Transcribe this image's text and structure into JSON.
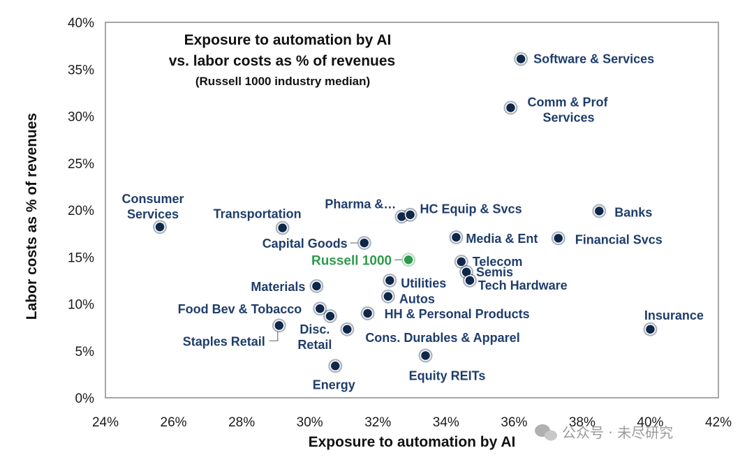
{
  "chart_data": {
    "type": "scatter",
    "title": "Exposure to automation by AI",
    "title_line2": "vs. labor costs as % of revenues",
    "subtitle": "(Russell 1000 industry median)",
    "xlabel": "Exposure to automation by AI",
    "ylabel": "Labor costs as % of revenues",
    "xlim": [
      24,
      42
    ],
    "ylim": [
      0,
      40
    ],
    "x_ticks": [
      24,
      26,
      28,
      30,
      32,
      34,
      36,
      38,
      40,
      42
    ],
    "y_ticks": [
      0,
      5,
      10,
      15,
      20,
      25,
      30,
      35,
      40
    ],
    "x_tick_labels": [
      "24%",
      "26%",
      "28%",
      "30%",
      "32%",
      "34%",
      "36%",
      "38%",
      "40%",
      "42%"
    ],
    "y_tick_labels": [
      "0%",
      "5%",
      "10%",
      "15%",
      "20%",
      "25%",
      "30%",
      "35%",
      "40%"
    ],
    "grid": false,
    "colors": {
      "point": "#0f2748",
      "label": "#1f3d6b",
      "highlight": "#2e9a4e",
      "frame": "#a6a6a6"
    },
    "points": [
      {
        "label": "Software & Services",
        "x": 36.2,
        "y": 36.1
      },
      {
        "label": "Comm & Prof",
        "label2": "Services",
        "x": 35.9,
        "y": 30.9
      },
      {
        "label": "Consumer",
        "label2": "Services",
        "x": 25.6,
        "y": 18.2
      },
      {
        "label": "Transportation",
        "x": 29.2,
        "y": 18.1
      },
      {
        "label": "Pharma &…",
        "x": 32.7,
        "y": 19.3
      },
      {
        "label": "HC Equip & Svcs",
        "x": 32.95,
        "y": 19.5
      },
      {
        "label": "Banks",
        "x": 38.5,
        "y": 19.9
      },
      {
        "label": "Media & Ent",
        "x": 34.3,
        "y": 17.1
      },
      {
        "label": "Financial Svcs",
        "x": 37.3,
        "y": 17.0
      },
      {
        "label": "Capital Goods",
        "x": 31.6,
        "y": 16.5
      },
      {
        "label": "Russell 1000",
        "x": 32.9,
        "y": 14.7,
        "highlight": true
      },
      {
        "label": "Telecom",
        "x": 34.45,
        "y": 14.5
      },
      {
        "label": "Semis",
        "x": 34.6,
        "y": 13.4
      },
      {
        "label": "Tech Hardware",
        "x": 34.7,
        "y": 12.5
      },
      {
        "label": "Utilities",
        "x": 32.35,
        "y": 12.5
      },
      {
        "label": "Materials",
        "x": 30.2,
        "y": 11.9
      },
      {
        "label": "Autos",
        "x": 32.3,
        "y": 10.8
      },
      {
        "label": "Food Bev & Tobacco",
        "x": 30.3,
        "y": 9.5
      },
      {
        "label": "HH & Personal Products",
        "x": 31.7,
        "y": 9.0
      },
      {
        "label": "Insurance",
        "x": 40.0,
        "y": 7.3
      },
      {
        "label": "Disc.",
        "label2": "Retail",
        "x": 30.6,
        "y": 8.7
      },
      {
        "label": "Staples Retail",
        "x": 29.1,
        "y": 7.7
      },
      {
        "label": "Cons. Durables & Apparel",
        "x": 31.1,
        "y": 7.3
      },
      {
        "label": "Equity REITs",
        "x": 33.4,
        "y": 4.5
      },
      {
        "label": "Energy",
        "x": 30.75,
        "y": 3.4
      }
    ]
  },
  "watermark": "公众号 · 未尽研究"
}
